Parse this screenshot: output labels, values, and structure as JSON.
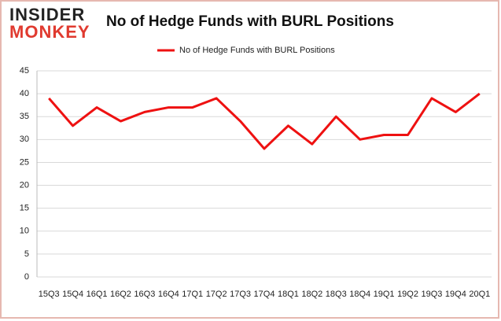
{
  "logo": {
    "line1": "INSIDER",
    "line2": "MONKEY"
  },
  "chart_data": {
    "type": "line",
    "title": "No of Hedge Funds with BURL Positions",
    "categories": [
      "15Q3",
      "15Q4",
      "16Q1",
      "16Q2",
      "16Q3",
      "16Q4",
      "17Q1",
      "17Q2",
      "17Q3",
      "17Q4",
      "18Q1",
      "18Q2",
      "18Q3",
      "18Q4",
      "19Q1",
      "19Q2",
      "19Q3",
      "19Q4",
      "20Q1"
    ],
    "series": [
      {
        "name": "No of Hedge Funds with BURL Positions",
        "color": "#ee1111",
        "values": [
          39,
          33,
          37,
          34,
          36,
          37,
          37,
          39,
          34,
          28,
          33,
          29,
          35,
          30,
          31,
          31,
          39,
          36,
          40
        ]
      }
    ],
    "ylim": [
      0,
      45
    ],
    "yticks": [
      0,
      5,
      10,
      15,
      20,
      25,
      30,
      35,
      40,
      45
    ],
    "grid": true,
    "legend": "top"
  }
}
